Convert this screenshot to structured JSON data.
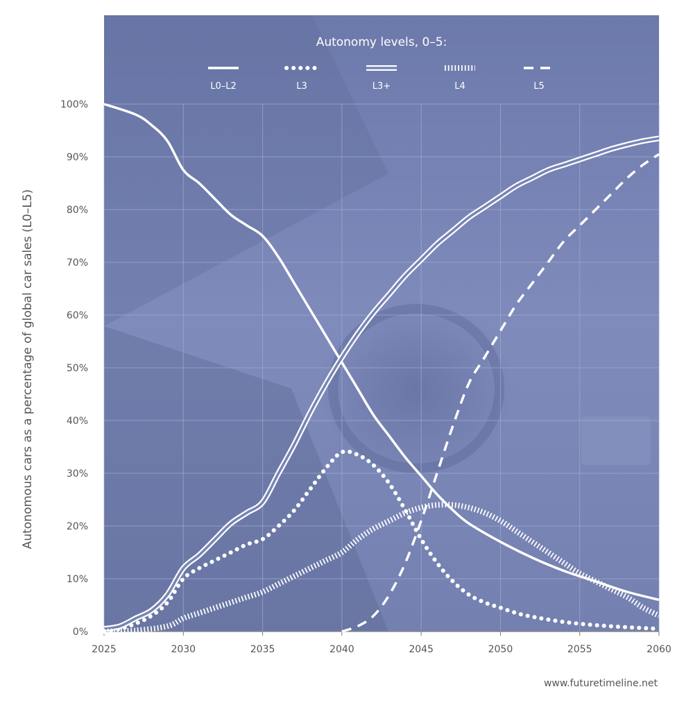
{
  "chart_data": {
    "type": "line",
    "title": "",
    "xlabel": "",
    "ylabel": "Autonomous cars as a percentage of global car sales (L0–L5)",
    "legend_title": "Autonomy levels, 0–5:",
    "legend_placement": "top-center",
    "grid": true,
    "xlim": [
      2025,
      2060
    ],
    "ylim": [
      0,
      100
    ],
    "x_ticks": [
      "2025",
      "2030",
      "2035",
      "2040",
      "2045",
      "2050",
      "2055",
      "2060"
    ],
    "y_ticks": [
      "0%",
      "10%",
      "20%",
      "30%",
      "40%",
      "50%",
      "60%",
      "70%",
      "80%",
      "90%",
      "100%"
    ],
    "series": [
      {
        "name": "L0–L2",
        "style": "solid",
        "x": [
          2025,
          2027,
          2028,
          2029,
          2030,
          2031,
          2032,
          2033,
          2034,
          2035,
          2036,
          2037,
          2038,
          2039,
          2040,
          2041,
          2042,
          2043,
          2044,
          2045,
          2046,
          2047,
          2048,
          2050,
          2052,
          2054,
          2056,
          2058,
          2060
        ],
        "values": [
          100,
          98,
          96,
          93,
          87.5,
          85,
          82,
          79,
          77,
          75,
          71,
          66,
          61,
          56,
          51,
          46,
          41,
          37,
          33,
          29.5,
          26,
          23,
          20.5,
          17,
          14,
          11.5,
          9.5,
          7.5,
          6
        ]
      },
      {
        "name": "L3",
        "style": "dotted",
        "x": [
          2025,
          2026,
          2027,
          2028,
          2029,
          2030,
          2031,
          2032,
          2033,
          2034,
          2035,
          2036,
          2037,
          2038,
          2039,
          2040,
          2041,
          2042,
          2043,
          2044,
          2045,
          2046,
          2047,
          2048,
          2049,
          2050,
          2051,
          2052,
          2054,
          2056,
          2058,
          2060
        ],
        "values": [
          0,
          0.5,
          1.5,
          3,
          5.5,
          10,
          12,
          13.5,
          15,
          16.5,
          17.5,
          20,
          23,
          27,
          31,
          34,
          33.5,
          31.5,
          28,
          23,
          17.5,
          13,
          9.5,
          7,
          5.5,
          4.5,
          3.5,
          2.8,
          1.8,
          1.2,
          0.8,
          0.5
        ]
      },
      {
        "name": "L3+",
        "style": "double",
        "x": [
          2025,
          2026,
          2027,
          2028,
          2029,
          2030,
          2031,
          2032,
          2033,
          2034,
          2035,
          2036,
          2037,
          2038,
          2039,
          2040,
          2041,
          2042,
          2043,
          2044,
          2045,
          2046,
          2047,
          2048,
          2049,
          2050,
          2051,
          2052,
          2053,
          2054,
          2055,
          2056,
          2057,
          2058,
          2059,
          2060
        ],
        "values": [
          0.5,
          1,
          2.5,
          4,
          7,
          12,
          14.5,
          17.5,
          20.5,
          22.5,
          24.5,
          30,
          35.5,
          41.5,
          47,
          52,
          56.5,
          60.5,
          64,
          67.5,
          70.5,
          73.5,
          76,
          78.5,
          80.5,
          82.5,
          84.5,
          86,
          87.5,
          88.5,
          89.5,
          90.5,
          91.5,
          92.3,
          93,
          93.5
        ]
      },
      {
        "name": "L4",
        "style": "hatched",
        "x": [
          2025,
          2027,
          2029,
          2030,
          2031,
          2032,
          2033,
          2034,
          2035,
          2036,
          2037,
          2038,
          2039,
          2040,
          2041,
          2042,
          2043,
          2044,
          2045,
          2046,
          2047,
          2048,
          2049,
          2050,
          2051,
          2052,
          2053,
          2054,
          2055,
          2056,
          2057,
          2058,
          2059,
          2060
        ],
        "values": [
          0,
          0.2,
          1,
          2.5,
          3.5,
          4.5,
          5.5,
          6.5,
          7.5,
          9,
          10.5,
          12,
          13.5,
          15,
          17.5,
          19.5,
          21,
          22.5,
          23.5,
          24,
          24,
          23.5,
          22.5,
          21,
          19,
          17,
          15,
          13,
          11,
          9.5,
          8,
          6.5,
          4.5,
          3
        ]
      },
      {
        "name": "L5",
        "style": "dashed",
        "x": [
          2040,
          2041,
          2042,
          2043,
          2044,
          2045,
          2046,
          2047,
          2048,
          2049,
          2050,
          2051,
          2052,
          2053,
          2054,
          2055,
          2056,
          2057,
          2058,
          2059,
          2060
        ],
        "values": [
          0,
          1,
          3,
          7,
          13,
          21,
          30,
          39,
          47,
          52,
          57,
          62,
          66,
          70,
          74,
          77,
          80,
          83,
          86,
          88.5,
          90.5
        ]
      }
    ]
  },
  "footer": {
    "credit": "www.futuretimeline.net"
  },
  "colors": {
    "plot_background": "#7784b4",
    "line": "#ffffff",
    "text": "#555555",
    "grid": "#a3acd0"
  }
}
